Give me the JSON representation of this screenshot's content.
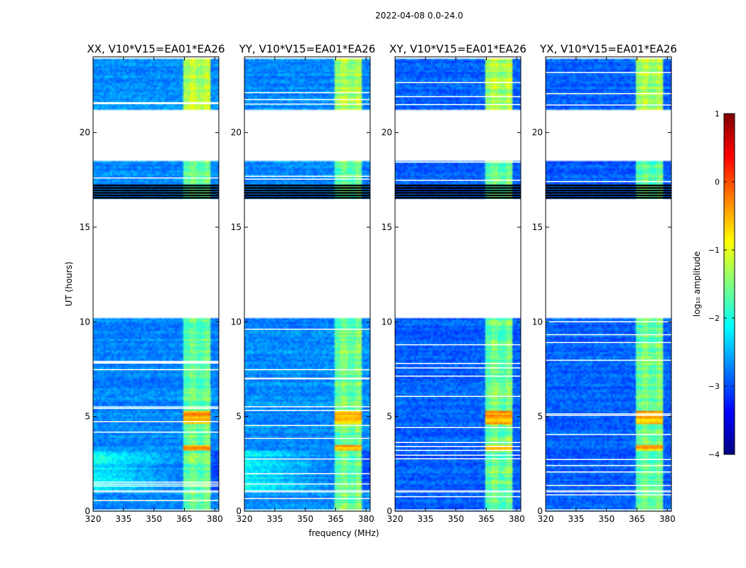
{
  "figure_title": "2022-04-08 0.0-24.0",
  "chart_data": {
    "type": "heatmap",
    "suptitle": "2022-04-08 0.0-24.0",
    "xlabel": "frequency (MHz)",
    "ylabel": "UT (hours)",
    "xlim": [
      320,
      382
    ],
    "ylim": [
      0,
      24
    ],
    "xticks": [
      320,
      335,
      350,
      365,
      380
    ],
    "yticks": [
      0,
      5,
      10,
      15,
      20
    ],
    "panels": [
      {
        "title": "XX, V10*V15=EA01*EA26"
      },
      {
        "title": "YY, V10*V15=EA01*EA26"
      },
      {
        "title": "XY, V10*V15=EA01*EA26"
      },
      {
        "title": "YX, V10*V15=EA01*EA26"
      }
    ],
    "data_time_ranges": [
      [
        0.0,
        0.35
      ],
      [
        0.45,
        1.0
      ],
      [
        1.1,
        10.2
      ],
      [
        16.5,
        18.5
      ],
      [
        21.2,
        23.9
      ]
    ],
    "colorbar": {
      "label": "log₁₀ amplitude",
      "range": [
        -4,
        1
      ],
      "ticks": [
        1,
        0,
        -1,
        -2,
        -3,
        -4
      ],
      "tick_labels": [
        "1",
        "0",
        "−1",
        "−2",
        "−3",
        "−4"
      ],
      "colormap": "jet",
      "colors": [
        "#00007f",
        "#0000ff",
        "#007fff",
        "#00ffff",
        "#7fff7f",
        "#ffff00",
        "#ff7f00",
        "#ff0000",
        "#7f0000"
      ]
    }
  }
}
